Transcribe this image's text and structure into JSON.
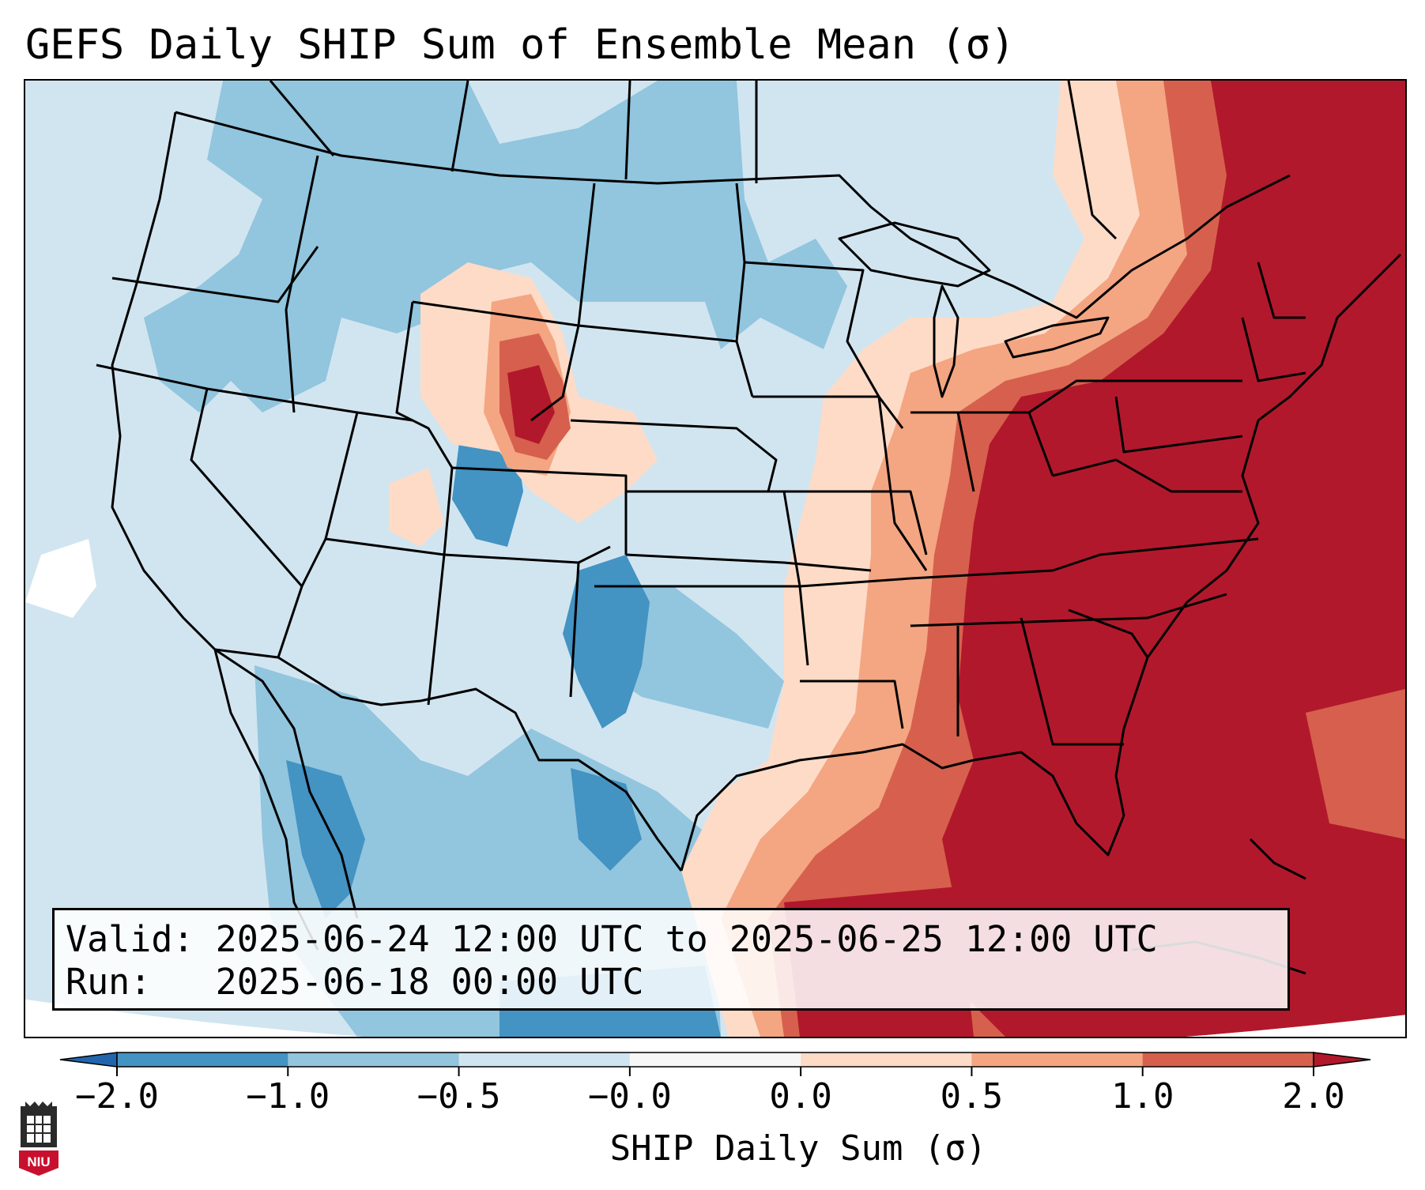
{
  "title": "GEFS Daily SHIP Sum of Ensemble Mean (σ)",
  "info": {
    "valid_line": "Valid: 2025-06-24 12:00 UTC to 2025-06-25 12:00 UTC",
    "run_line": "Run:   2025-06-18 00:00 UTC"
  },
  "colorbar": {
    "label": "SHIP Daily Sum (σ)",
    "ticks": [
      "−2.0",
      "−1.0",
      "−0.5",
      "−0.0",
      "0.0",
      "0.5",
      "1.0",
      "2.0"
    ],
    "bins": [
      {
        "from": -2.0,
        "to": -1.0,
        "color": "#4393c3"
      },
      {
        "from": -1.0,
        "to": -0.5,
        "color": "#92c5de"
      },
      {
        "from": -0.5,
        "to": -0.0,
        "color": "#d1e5f0"
      },
      {
        "from": -0.0,
        "to": 0.0,
        "color": "#f7f7f7"
      },
      {
        "from": 0.0,
        "to": 0.5,
        "color": "#fddbc7"
      },
      {
        "from": 0.5,
        "to": 1.0,
        "color": "#f4a582"
      },
      {
        "from": 1.0,
        "to": 2.0,
        "color": "#d6604d"
      }
    ],
    "under_color": "#2166ac",
    "over_color": "#b2182b",
    "extend": "both"
  },
  "map": {
    "projection": "Lambert conformal",
    "region": "Contiguous United States, southern Canada, northern Mexico",
    "boundaries": [
      "coastlines",
      "country borders",
      "state borders"
    ],
    "pattern": "negative anomalies over western and central US; strongly positive anomalies over eastern US, Gulf of Mexico and western Atlantic"
  },
  "logo": {
    "text": "NIU"
  }
}
